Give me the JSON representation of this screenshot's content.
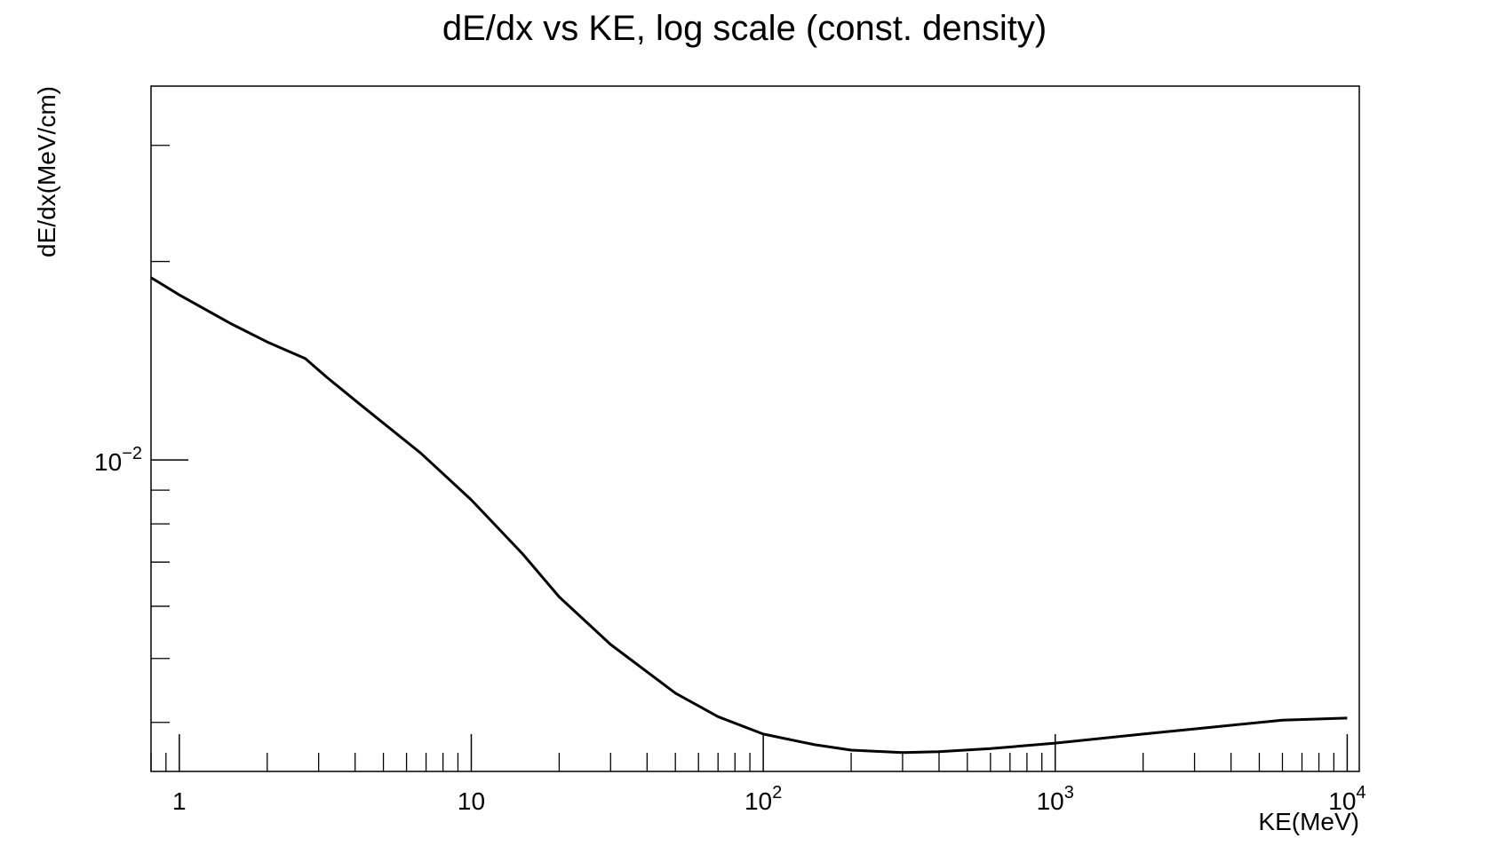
{
  "chart_data": {
    "type": "line",
    "title": "dE/dx vs KE, log scale (const. density)",
    "xlabel": "KE(MeV)",
    "ylabel": "dE/dx(MeV/cm)",
    "xscale": "log",
    "yscale": "log",
    "xlim": [
      0.8,
      11000
    ],
    "ylim": [
      0.00337,
      0.0369
    ],
    "grid": false,
    "x_ticks": [
      {
        "value": 1,
        "base": "1",
        "exp": ""
      },
      {
        "value": 10,
        "base": "10",
        "exp": ""
      },
      {
        "value": 100,
        "base": "10",
        "exp": "2"
      },
      {
        "value": 1000,
        "base": "10",
        "exp": "3"
      },
      {
        "value": 10000,
        "base": "10",
        "exp": "4"
      }
    ],
    "y_ticks": [
      {
        "value": 0.01,
        "base": "10",
        "exp": "−2"
      }
    ],
    "series": [
      {
        "color": "#000000",
        "x": [
          0.8,
          0.85,
          1.0,
          1.5,
          2.0,
          2.7,
          3.2,
          4.2,
          6.7,
          10,
          15,
          20,
          30,
          50,
          70,
          100,
          150,
          200,
          300,
          400,
          600,
          1000,
          2000,
          3000,
          4000,
          6000,
          10000
        ],
        "y": [
          0.0189,
          0.0186,
          0.0178,
          0.0161,
          0.0151,
          0.01425,
          0.01335,
          0.0121,
          0.01025,
          0.0087,
          0.0072,
          0.0062,
          0.00525,
          0.00443,
          0.00408,
          0.00384,
          0.0037,
          0.00363,
          0.0036,
          0.00361,
          0.00365,
          0.00372,
          0.00384,
          0.00391,
          0.00396,
          0.00403,
          0.00406
        ]
      }
    ]
  }
}
